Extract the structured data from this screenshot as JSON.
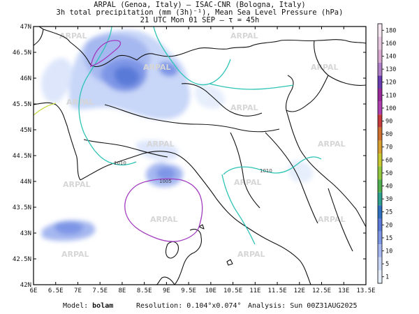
{
  "header": {
    "line1": "ARPAL (Genoa, Italy)  —  ISAC-CNR (Bologna, Italy)",
    "line2": "3h total precipitation (mm (3h)⁻¹), Mean Sea Level Pressure (hPa)",
    "line3": "21 UTC Mon 01 SEP  —  τ = 45h"
  },
  "axes": {
    "lat_labels": [
      "47N",
      "46.5N",
      "46N",
      "45.5N",
      "45N",
      "44.5N",
      "44N",
      "43.5N",
      "43N",
      "42.5N",
      "42N"
    ],
    "lon_labels": [
      "6E",
      "6.5E",
      "7E",
      "7.5E",
      "8E",
      "8.5E",
      "9E",
      "9.5E",
      "10E",
      "10.5E",
      "11E",
      "11.5E",
      "12E",
      "12.5E",
      "13E",
      "13.5E"
    ],
    "lat_range": [
      42,
      47
    ],
    "lon_range": [
      6,
      13.5
    ]
  },
  "colorbar": {
    "values": [
      "180",
      "160",
      "140",
      "130",
      "120",
      "110",
      "100",
      "90",
      "80",
      "70",
      "60",
      "50",
      "40",
      "30",
      "25",
      "20",
      "15",
      "10",
      "5",
      "1"
    ],
    "colors": [
      "#f5e6f0",
      "#e8c8e0",
      "#d9a8d0",
      "#b07fc8",
      "#6a3ab0",
      "#9a2a9a",
      "#b040b0",
      "#c63c3c",
      "#d07030",
      "#d8a030",
      "#c8c830",
      "#90c840",
      "#50b050",
      "#30a090",
      "#3070c0",
      "#5a7ad8",
      "#7e96e6",
      "#a6b8f0",
      "#c8d6f8",
      "#e6eefc"
    ]
  },
  "isobars": {
    "colors": {
      "1010": "#2ec4b6",
      "1015": "#c8d84a",
      "1005": "#a23cbf"
    },
    "labels": [
      {
        "text": "1010",
        "lon": 7.7,
        "lat": 44.35
      },
      {
        "text": "1010",
        "lon": 11.2,
        "lat": 44.25
      },
      {
        "text": "1005",
        "lon": 9.0,
        "lat": 44.06
      }
    ]
  },
  "watermark": "ARPAL",
  "footer": {
    "model_label": "Model:",
    "model_value": "bolam",
    "resolution_label": "Resolution:",
    "resolution_value": "0.104°x0.074°",
    "analysis_label": "Analysis:",
    "analysis_value": "Sun 00Z31AUG2025"
  }
}
